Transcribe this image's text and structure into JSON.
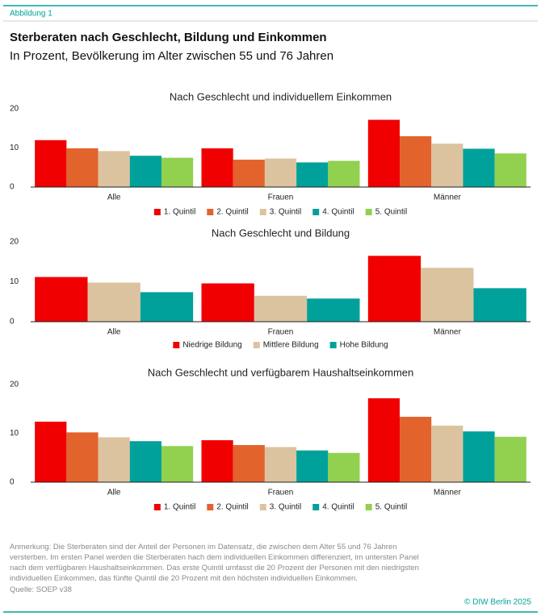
{
  "header": {
    "label": "Abbildung 1",
    "title": "Sterberaten nach Geschlecht, Bildung und Einkommen",
    "subtitle": "In Prozent, Bevölkerung im Alter zwischen 55 und 76 Jahren"
  },
  "chart_data": [
    {
      "type": "bar",
      "title": "Nach Geschlecht und individuellem Einkommen",
      "categories": [
        "Alle",
        "Frauen",
        "Männer"
      ],
      "series": [
        {
          "name": "1. Quintil",
          "color": "#f00000",
          "values": [
            12,
            9.9,
            17.2
          ]
        },
        {
          "name": "2. Quintil",
          "color": "#e2632b",
          "values": [
            9.9,
            7,
            13
          ]
        },
        {
          "name": "3. Quintil",
          "color": "#dcc3a0",
          "values": [
            9.2,
            7.3,
            11.1
          ]
        },
        {
          "name": "4. Quintil",
          "color": "#00a19a",
          "values": [
            8,
            6.3,
            9.8
          ]
        },
        {
          "name": "5. Quintil",
          "color": "#92d050",
          "values": [
            7.5,
            6.7,
            8.6
          ]
        }
      ],
      "ylim": [
        0,
        20
      ],
      "yticks": [
        0,
        10,
        20
      ],
      "grid": false,
      "legend": "bottom"
    },
    {
      "type": "bar",
      "title": "Nach Geschlecht und Bildung",
      "categories": [
        "Alle",
        "Frauen",
        "Männer"
      ],
      "series": [
        {
          "name": "Niedrige Bildung",
          "color": "#f00000",
          "values": [
            11.2,
            9.6,
            16.5
          ]
        },
        {
          "name": "Mittlere Bildung",
          "color": "#dcc3a0",
          "values": [
            9.8,
            6.5,
            13.5
          ]
        },
        {
          "name": "Hohe Bildung",
          "color": "#00a19a",
          "values": [
            7.4,
            5.8,
            8.4
          ]
        }
      ],
      "ylim": [
        0,
        20
      ],
      "yticks": [
        0,
        10,
        20
      ],
      "grid": false,
      "legend": "bottom"
    },
    {
      "type": "bar",
      "title": "Nach Geschlecht und verfügbarem Haushaltseinkommen",
      "categories": [
        "Alle",
        "Frauen",
        "Männer"
      ],
      "series": [
        {
          "name": "1. Quintil",
          "color": "#f00000",
          "values": [
            12.4,
            8.6,
            17.2
          ]
        },
        {
          "name": "2. Quintil",
          "color": "#e2632b",
          "values": [
            10.2,
            7.6,
            13.4
          ]
        },
        {
          "name": "3. Quintil",
          "color": "#dcc3a0",
          "values": [
            9.2,
            7.2,
            11.6
          ]
        },
        {
          "name": "4. Quintil",
          "color": "#00a19a",
          "values": [
            8.4,
            6.5,
            10.4
          ]
        },
        {
          "name": "5. Quintil",
          "color": "#92d050",
          "values": [
            7.4,
            6,
            9.3
          ]
        }
      ],
      "ylim": [
        0,
        20
      ],
      "yticks": [
        0,
        10,
        20
      ],
      "grid": false,
      "legend": "bottom"
    }
  ],
  "footer": {
    "note": "Anmerkung: Die Sterberaten sind der Anteil der Personen im Datensatz, die zwischen dem Alter 55 und 76 Jahren versterben. Im ersten Panel werden die Sterberaten hach dem individuellen Einkommen differenziert, im untersten Panel nach dem verfügbaren Haushaltseinkommen. Das erste Quintil umfasst die 20 Prozent der Personen mit den niedrigsten individuellen Einkommen, das fünfte Quintil die 20 Prozent mit den höchsten individuellen Einkommen.",
    "source": "Quelle: SOEP v38",
    "copyright": "© DIW Berlin 2025"
  }
}
